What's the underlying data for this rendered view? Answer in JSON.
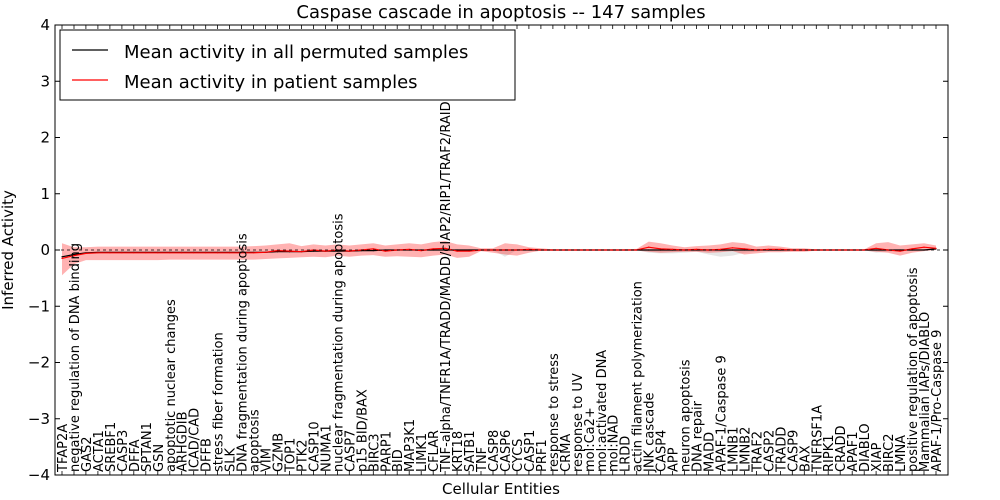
{
  "chart_data": {
    "type": "line",
    "title": "Caspase cascade in apoptosis -- 147 samples",
    "xlabel": "Cellular Entities",
    "ylabel": "Inferred Activity",
    "ylim": [
      -4,
      4
    ],
    "yticks": [
      "-4",
      "-3",
      "-2",
      "-1",
      "0",
      "1",
      "2",
      "3",
      "4"
    ],
    "legend_position": "top-left",
    "categories": [
      "TFAP2A",
      "negative regulation of DNA binding",
      "GAS2",
      "ACTA1",
      "SREBF1",
      "CASP3",
      "DFFA",
      "SPTAN1",
      "GSN",
      "apoptotic nuclear changes",
      "ARHGDIB",
      "ICAD/CAD",
      "DFFB",
      "stress fiber formation",
      "SLK",
      "DNA fragmentation during apoptosis",
      "apoptosis",
      "VIM",
      "GZMB",
      "TOP1",
      "PTK2",
      "CASP10",
      "NUMA1",
      "nuclear fragmentation during apoptosis",
      "CASP7",
      "p15 BID/BAX",
      "BIRC3",
      "PARP1",
      "BID",
      "MAP3K1",
      "LIMK1",
      "CFLAR",
      "TNF-alpha/TNFR1A/TRADD/MADD/cIAP2/RIP1/TRAF2/RAIDD",
      "KRT18",
      "SATB1",
      "TNF",
      "CASP8",
      "CASP6",
      "CYCS",
      "CASP1",
      "PRF1",
      "response to stress",
      "CRMA",
      "response to UV",
      "mol:Ca2+",
      "mol:activated DNA",
      "mol:NAD",
      "LRDD",
      "actin filament polymerization",
      "JNK cascade",
      "CASP4",
      "APP",
      "neuron apoptosis",
      "DNA repair",
      "MADD",
      "APAF-1/Caspase 9",
      "LMNB1",
      "LMNB2",
      "TRAF2",
      "CASP2",
      "TRADD",
      "CASP9",
      "BAX",
      "TNFRSF1A",
      "RIPK1",
      "CRADD",
      "APAF1",
      "DIABLO",
      "XIAP",
      "BIRC2",
      "LMNA",
      "positive regulation of apoptosis",
      "Mammalian IAPs/DIABLO",
      "APAF-1/Pro-Caspase 9"
    ],
    "series": [
      {
        "name": "Mean activity in all permuted samples",
        "color": "#000000",
        "values": [
          -0.12,
          -0.08,
          -0.05,
          -0.04,
          -0.04,
          -0.04,
          -0.04,
          -0.04,
          -0.04,
          -0.04,
          -0.04,
          -0.04,
          -0.04,
          -0.04,
          -0.04,
          -0.04,
          -0.04,
          -0.04,
          -0.03,
          -0.03,
          -0.03,
          -0.02,
          -0.02,
          -0.02,
          -0.02,
          -0.01,
          -0.01,
          0.0,
          0.0,
          0.0,
          0.0,
          0.0,
          0.0,
          0.0,
          0.0,
          0.0,
          0.0,
          0.0,
          0.0,
          0.0,
          0.0,
          0.0,
          0.0,
          0.0,
          0.0,
          0.0,
          0.0,
          0.0,
          0.0,
          0.0,
          0.0,
          0.0,
          0.0,
          0.0,
          0.0,
          0.0,
          0.0,
          0.0,
          0.0,
          0.0,
          0.0,
          0.0,
          0.0,
          0.0,
          0.0,
          0.0,
          0.0,
          0.0,
          0.0,
          0.0,
          0.0,
          0.0,
          0.0,
          0.02
        ],
        "lower": [
          -0.12,
          -0.08,
          -0.05,
          -0.04,
          -0.04,
          -0.04,
          -0.04,
          -0.04,
          -0.04,
          -0.04,
          -0.04,
          -0.04,
          -0.04,
          -0.04,
          -0.04,
          -0.04,
          -0.04,
          -0.04,
          -0.03,
          -0.03,
          -0.03,
          -0.02,
          -0.02,
          -0.02,
          -0.02,
          -0.01,
          -0.01,
          0.0,
          0.0,
          0.0,
          0.0,
          0.0,
          0.0,
          0.0,
          0.0,
          0.0,
          0.0,
          -0.12,
          0.0,
          0.0,
          0.0,
          0.0,
          0.0,
          0.0,
          0.0,
          0.0,
          0.0,
          0.0,
          0.0,
          -0.05,
          -0.06,
          -0.06,
          -0.05,
          -0.03,
          -0.08,
          -0.12,
          -0.1,
          -0.05,
          -0.03,
          0.0,
          0.0,
          0.0,
          0.0,
          0.0,
          0.0,
          0.0,
          0.0,
          0.0,
          -0.05,
          -0.03,
          -0.02,
          0.0,
          0.0,
          0.0
        ],
        "upper": [
          -0.12,
          -0.08,
          -0.05,
          -0.04,
          -0.04,
          -0.04,
          -0.04,
          -0.04,
          -0.04,
          -0.04,
          -0.04,
          -0.04,
          -0.04,
          -0.04,
          -0.04,
          -0.04,
          -0.04,
          -0.04,
          -0.03,
          -0.03,
          -0.03,
          -0.02,
          -0.02,
          -0.02,
          -0.02,
          -0.01,
          -0.01,
          0.0,
          0.0,
          0.0,
          0.0,
          0.0,
          0.0,
          0.0,
          0.0,
          0.0,
          0.0,
          0.0,
          0.0,
          0.0,
          0.0,
          0.0,
          0.0,
          0.0,
          0.0,
          0.0,
          0.0,
          0.0,
          0.0,
          0.0,
          0.0,
          0.0,
          0.0,
          0.0,
          0.0,
          0.0,
          0.0,
          0.0,
          0.0,
          0.0,
          0.0,
          0.0,
          0.0,
          0.0,
          0.0,
          0.0,
          0.0,
          0.0,
          0.0,
          0.0,
          0.0,
          0.0,
          0.0,
          0.02
        ]
      },
      {
        "name": "Mean activity in patient samples",
        "color": "#ff0000",
        "values": [
          -0.15,
          -0.1,
          -0.06,
          -0.05,
          -0.05,
          -0.05,
          -0.05,
          -0.05,
          -0.05,
          -0.05,
          -0.05,
          -0.05,
          -0.05,
          -0.05,
          -0.05,
          -0.05,
          -0.05,
          -0.04,
          -0.01,
          -0.02,
          -0.03,
          0.0,
          -0.02,
          0.0,
          -0.02,
          0.0,
          0.02,
          -0.02,
          0.0,
          0.01,
          -0.01,
          0.02,
          0.03,
          -0.02,
          -0.02,
          0.0,
          0.0,
          0.0,
          0.0,
          0.01,
          0.0,
          0.0,
          0.0,
          0.0,
          0.0,
          0.0,
          0.0,
          0.0,
          0.0,
          0.05,
          0.02,
          0.01,
          0.0,
          0.01,
          0.0,
          0.01,
          0.04,
          0.02,
          0.0,
          0.01,
          0.01,
          0.0,
          0.0,
          0.0,
          0.0,
          0.0,
          0.0,
          0.0,
          0.03,
          0.0,
          -0.02,
          0.02,
          0.05,
          0.03
        ],
        "lower": [
          -0.45,
          -0.25,
          -0.18,
          -0.18,
          -0.18,
          -0.18,
          -0.18,
          -0.18,
          -0.18,
          -0.17,
          -0.17,
          -0.17,
          -0.17,
          -0.17,
          -0.17,
          -0.17,
          -0.17,
          -0.16,
          -0.15,
          -0.14,
          -0.13,
          -0.12,
          -0.13,
          -0.1,
          -0.12,
          -0.1,
          -0.09,
          -0.12,
          -0.11,
          -0.12,
          -0.13,
          -0.1,
          -0.08,
          -0.14,
          -0.12,
          -0.02,
          -0.05,
          -0.08,
          -0.1,
          -0.05,
          -0.01,
          -0.01,
          -0.01,
          -0.01,
          -0.01,
          -0.01,
          -0.01,
          -0.01,
          -0.01,
          -0.03,
          -0.05,
          -0.04,
          -0.03,
          -0.03,
          -0.05,
          -0.04,
          -0.02,
          -0.08,
          -0.06,
          -0.04,
          -0.04,
          -0.03,
          -0.03,
          -0.01,
          -0.01,
          -0.01,
          -0.01,
          -0.01,
          -0.03,
          -0.05,
          -0.1,
          -0.05,
          -0.02,
          0.0
        ],
        "upper": [
          0.12,
          0.05,
          0.05,
          0.06,
          0.06,
          0.06,
          0.06,
          0.06,
          0.06,
          0.06,
          0.06,
          0.06,
          0.06,
          0.06,
          0.06,
          0.06,
          0.07,
          0.08,
          0.1,
          0.12,
          0.07,
          0.1,
          0.08,
          0.1,
          0.08,
          0.1,
          0.12,
          0.08,
          0.1,
          0.12,
          0.1,
          0.14,
          0.16,
          0.1,
          0.08,
          0.03,
          0.03,
          0.12,
          0.1,
          0.05,
          0.03,
          0.01,
          0.01,
          0.01,
          0.01,
          0.01,
          0.01,
          0.01,
          0.02,
          0.15,
          0.12,
          0.08,
          0.05,
          0.07,
          0.08,
          0.1,
          0.14,
          0.12,
          0.06,
          0.08,
          0.06,
          0.03,
          0.03,
          0.01,
          0.01,
          0.01,
          0.01,
          0.01,
          0.12,
          0.14,
          0.08,
          0.1,
          0.12,
          0.08
        ]
      }
    ]
  }
}
